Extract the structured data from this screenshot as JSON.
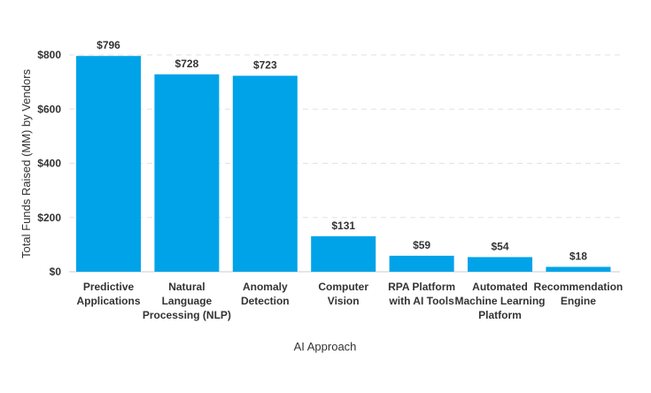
{
  "chart_data": {
    "type": "bar",
    "categories": [
      [
        "Predictive",
        "Applications"
      ],
      [
        "Natural",
        "Language",
        "Processing (NLP)"
      ],
      [
        "Anomaly",
        "Detection"
      ],
      [
        "Computer",
        "Vision"
      ],
      [
        "RPA Platform",
        "with AI Tools"
      ],
      [
        "Automated",
        "Machine Learning",
        "Platform"
      ],
      [
        "Recommendation",
        "Engine"
      ]
    ],
    "values": [
      796,
      728,
      723,
      131,
      59,
      54,
      18
    ],
    "data_labels": [
      "$796",
      "$728",
      "$723",
      "$131",
      "$59",
      "$54",
      "$18"
    ],
    "xlabel": "AI Approach",
    "ylabel": "Total Funds Raised (MM) by Vendors",
    "ylim": [
      0,
      800
    ],
    "yticks": [
      0,
      200,
      400,
      600,
      800
    ],
    "ytick_labels": [
      "$0",
      "$200",
      "$400",
      "$600",
      "$800"
    ],
    "grid": "horizontal dashed",
    "bar_color": "#00a3e8"
  }
}
